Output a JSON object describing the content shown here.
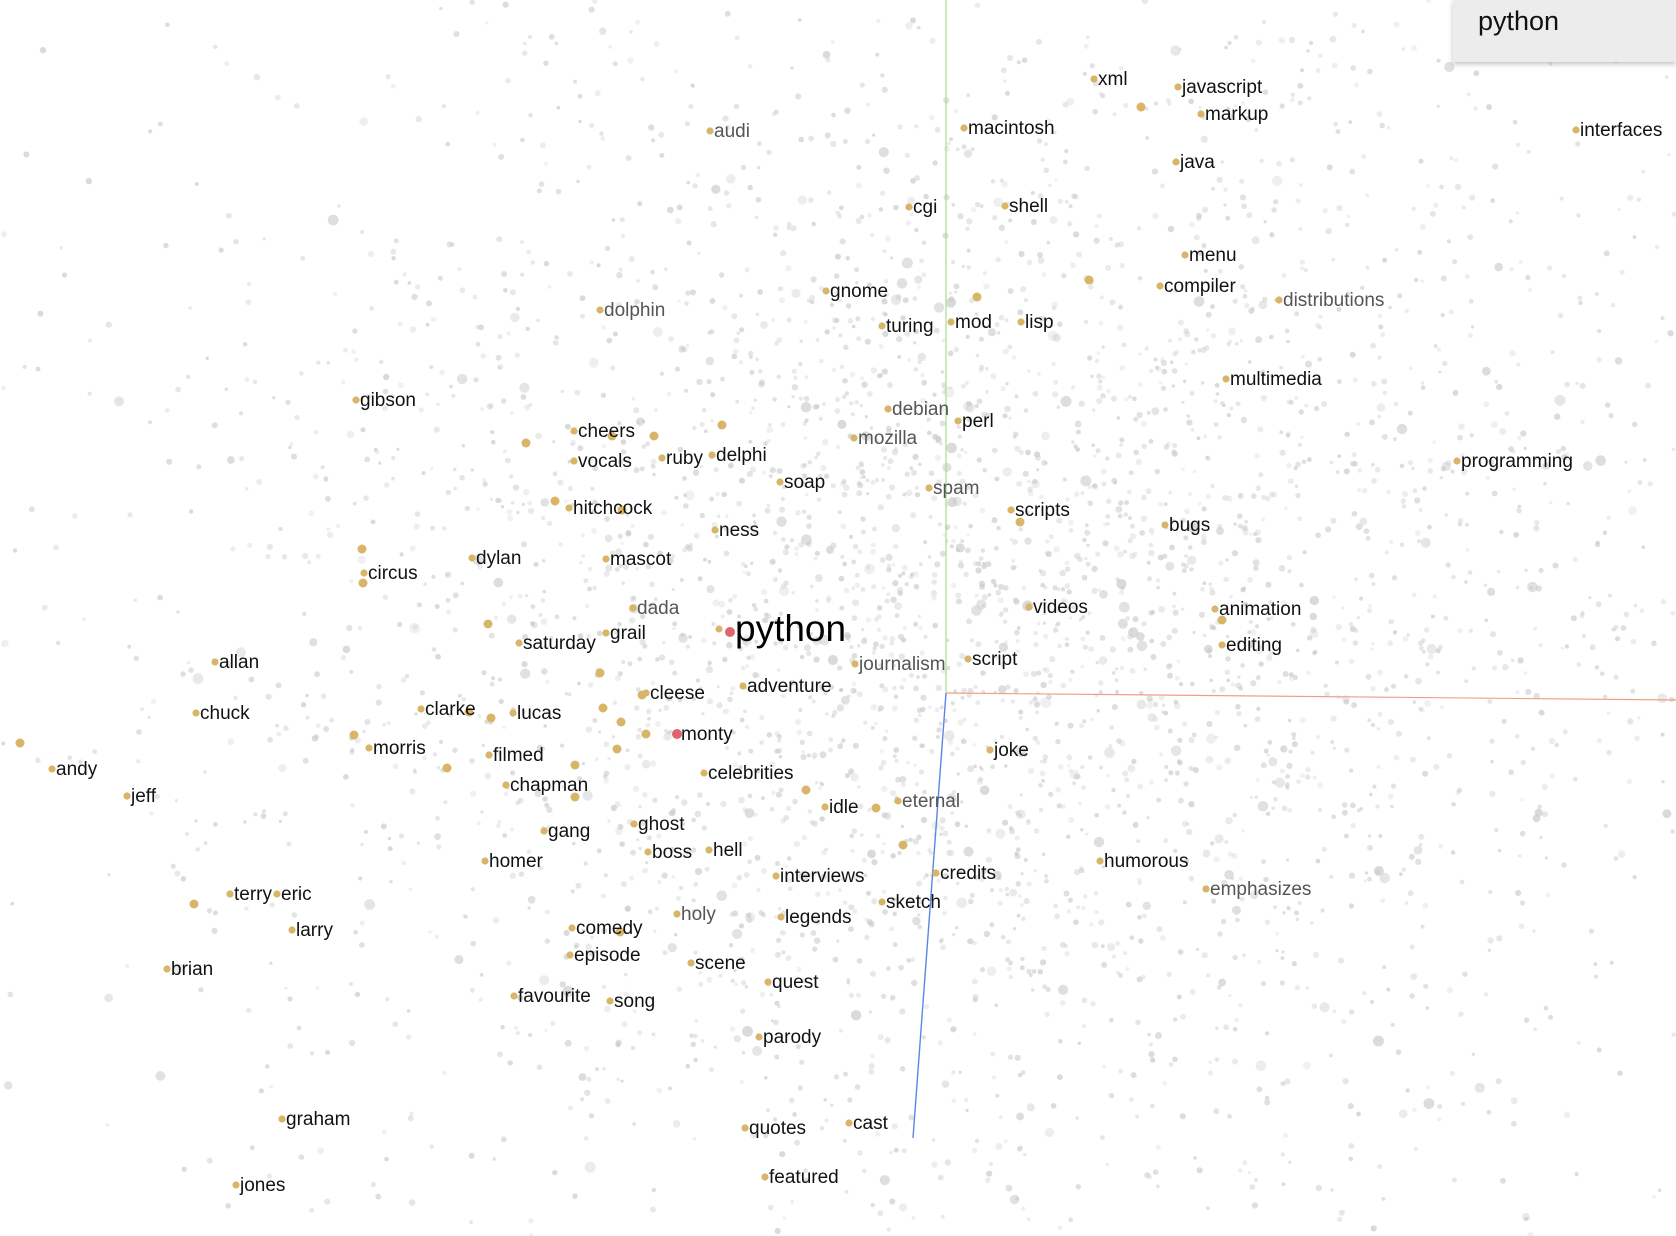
{
  "selected_word": "python",
  "colors": {
    "neighbor_point": "#d9b56a",
    "focus_point": "#e0646e",
    "background_point": "#c9c9c9",
    "axis_x": "#f0a080",
    "axis_y": "#a8e08c",
    "axis_z": "#5b86e8"
  },
  "focus": {
    "word": "python"
  },
  "neighbors": [
    {
      "word": "xml"
    },
    {
      "word": "javascript"
    },
    {
      "word": "markup"
    },
    {
      "word": "audi",
      "faint": true
    },
    {
      "word": "macintosh"
    },
    {
      "word": "interfaces"
    },
    {
      "word": "java"
    },
    {
      "word": "cgi"
    },
    {
      "word": "shell"
    },
    {
      "word": "menu"
    },
    {
      "word": "compiler"
    },
    {
      "word": "distributions",
      "faint": true
    },
    {
      "word": "gnome"
    },
    {
      "word": "dolphin",
      "faint": true
    },
    {
      "word": "turing"
    },
    {
      "word": "mod"
    },
    {
      "word": "lisp"
    },
    {
      "word": "multimedia"
    },
    {
      "word": "gibson"
    },
    {
      "word": "debian",
      "faint": true
    },
    {
      "word": "perl"
    },
    {
      "word": "cheers"
    },
    {
      "word": "mozilla",
      "faint": true
    },
    {
      "word": "vocals"
    },
    {
      "word": "ruby"
    },
    {
      "word": "delphi"
    },
    {
      "word": "programming"
    },
    {
      "word": "soap"
    },
    {
      "word": "spam",
      "faint": true
    },
    {
      "word": "hitchcock"
    },
    {
      "word": "scripts"
    },
    {
      "word": "ness"
    },
    {
      "word": "bugs"
    },
    {
      "word": "dylan"
    },
    {
      "word": "mascot"
    },
    {
      "word": "circus"
    },
    {
      "word": "dada",
      "faint": true
    },
    {
      "word": "videos"
    },
    {
      "word": "animation"
    },
    {
      "word": "grail"
    },
    {
      "word": "saturday"
    },
    {
      "word": "editing"
    },
    {
      "word": "allan"
    },
    {
      "word": "journalism",
      "faint": true
    },
    {
      "word": "script"
    },
    {
      "word": "cleese"
    },
    {
      "word": "adventure"
    },
    {
      "word": "chuck"
    },
    {
      "word": "clarke"
    },
    {
      "word": "lucas"
    },
    {
      "word": "monty",
      "focus_color": true
    },
    {
      "word": "morris"
    },
    {
      "word": "joke"
    },
    {
      "word": "filmed"
    },
    {
      "word": "andy"
    },
    {
      "word": "celebrities"
    },
    {
      "word": "chapman"
    },
    {
      "word": "jeff"
    },
    {
      "word": "idle"
    },
    {
      "word": "eternal",
      "faint": true
    },
    {
      "word": "ghost"
    },
    {
      "word": "gang"
    },
    {
      "word": "boss"
    },
    {
      "word": "hell"
    },
    {
      "word": "homer"
    },
    {
      "word": "humorous"
    },
    {
      "word": "interviews"
    },
    {
      "word": "credits"
    },
    {
      "word": "emphasizes",
      "faint": true
    },
    {
      "word": "terry"
    },
    {
      "word": "eric"
    },
    {
      "word": "sketch"
    },
    {
      "word": "holy",
      "faint": true
    },
    {
      "word": "legends"
    },
    {
      "word": "larry"
    },
    {
      "word": "comedy"
    },
    {
      "word": "episode"
    },
    {
      "word": "scene"
    },
    {
      "word": "brian"
    },
    {
      "word": "quest"
    },
    {
      "word": "favourite"
    },
    {
      "word": "song"
    },
    {
      "word": "parody"
    },
    {
      "word": "graham"
    },
    {
      "word": "cast"
    },
    {
      "word": "quotes"
    },
    {
      "word": "jones"
    },
    {
      "word": "featured"
    }
  ]
}
